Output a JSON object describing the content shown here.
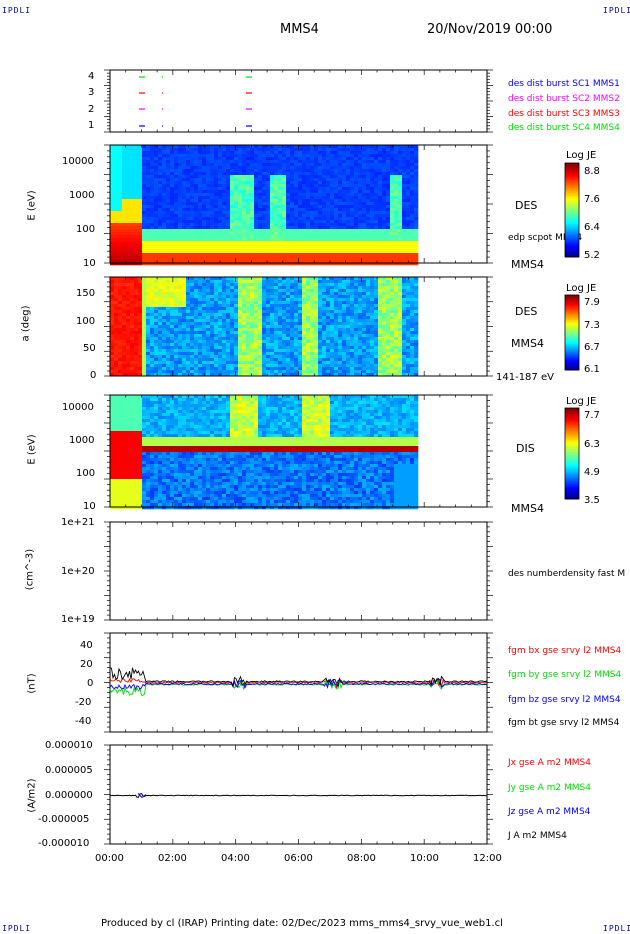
{
  "header": {
    "corner_tl": "IPDLI",
    "corner_tr": "IPDLI",
    "corner_bl": "IPDLI",
    "corner_br": "IPDLI",
    "spacecraft": "MMS4",
    "datetime": "20/Nov/2019 00:00"
  },
  "footer": {
    "text": "Produced by cl (IRAP)   Printing date: 02/Dec/2023   mms_mms4_srvy_vue_web1.cl"
  },
  "colors": {
    "c1": "#0000ff",
    "c2": "#ff00ff",
    "c3": "#ff0000",
    "c4": "#00dd00"
  },
  "chart_data": [
    {
      "type": "line",
      "panel": "burst-availability",
      "y_ticks": [
        "4",
        "3",
        "2",
        "1"
      ],
      "legend": [
        {
          "name": "des dist burst SC1 MMS1",
          "color": "#0000ff"
        },
        {
          "name": "des dist burst SC2 MMS2",
          "color": "#ff00ff"
        },
        {
          "name": "des dist burst SC3 MMS3",
          "color": "#ff0000"
        },
        {
          "name": "des dist burst SC4 MMS4",
          "color": "#00dd00"
        }
      ],
      "marks_hours": [
        0.95,
        1.65,
        4.3
      ]
    },
    {
      "type": "heatmap",
      "panel": "des-energy",
      "ylabel": "E (eV)",
      "y_ticks": [
        "10000",
        "1000",
        "100",
        "10"
      ],
      "label": "DES",
      "sublabel": "edp scpot MMS4",
      "bottom_right": "MMS4",
      "colorbar": {
        "title": "Log JE",
        "ticks": [
          "8.8",
          "7.6",
          "6.4",
          "5.2"
        ]
      }
    },
    {
      "type": "heatmap",
      "panel": "des-pitch",
      "ylabel": "a (deg)",
      "y_ticks": [
        "150",
        "100",
        "50",
        "0"
      ],
      "label": "DES",
      "sublabel": "MMS4",
      "bottom_right": "141-187 eV",
      "colorbar": {
        "title": "Log JE",
        "ticks": [
          "7.9",
          "7.3",
          "6.7",
          "6.1"
        ]
      }
    },
    {
      "type": "heatmap",
      "panel": "dis-energy",
      "ylabel": "E (eV)",
      "y_ticks": [
        "10000",
        "1000",
        "100",
        "10"
      ],
      "label": "DIS",
      "bottom_right": "MMS4",
      "colorbar": {
        "title": "Log JE",
        "ticks": [
          "7.7",
          "6.3",
          "4.9",
          "3.5"
        ]
      }
    },
    {
      "type": "line",
      "panel": "density",
      "ylabel": "(cm^-3)",
      "y_ticks": [
        "1e+21",
        "1e+20",
        "1e+19"
      ],
      "legend": [
        {
          "name": "des numberdensity fast M",
          "color": "#000000"
        }
      ]
    },
    {
      "type": "line",
      "panel": "magnetic-field",
      "ylabel": "(nT)",
      "y_ticks": [
        "40",
        "20",
        "0",
        "-20",
        "-40"
      ],
      "ylim": [
        -50,
        50
      ],
      "legend": [
        {
          "name": "fgm bx gse srvy l2 MMS4",
          "color": "#ff0000"
        },
        {
          "name": "fgm by gse srvy l2 MMS4",
          "color": "#00dd00"
        },
        {
          "name": "fgm bz gse srvy l2 MMS4",
          "color": "#0000ff"
        },
        {
          "name": "fgm bt gse srvy l2 MMS4",
          "color": "#000000"
        }
      ]
    },
    {
      "type": "line",
      "panel": "current-density",
      "ylabel": "(A/m2)",
      "y_ticks": [
        "0.000010",
        "0.000005",
        "0.000000",
        "-0.000005",
        "-0.000010"
      ],
      "ylim": [
        -1e-05,
        1e-05
      ],
      "legend": [
        {
          "name": "Jx gse A m2 MMS4",
          "color": "#ff0000"
        },
        {
          "name": "Jy gse A m2 MMS4",
          "color": "#00dd00"
        },
        {
          "name": "Jz gse A m2 MMS4",
          "color": "#0000ff"
        },
        {
          "name": "J A m2 MMS4",
          "color": "#000000"
        }
      ]
    }
  ],
  "x_axis": {
    "ticks": [
      "00:00",
      "02:00",
      "04:00",
      "06:00",
      "08:00",
      "10:00",
      "12:00"
    ],
    "range_hours": [
      0,
      12
    ],
    "data_end_hours": 9.8
  }
}
